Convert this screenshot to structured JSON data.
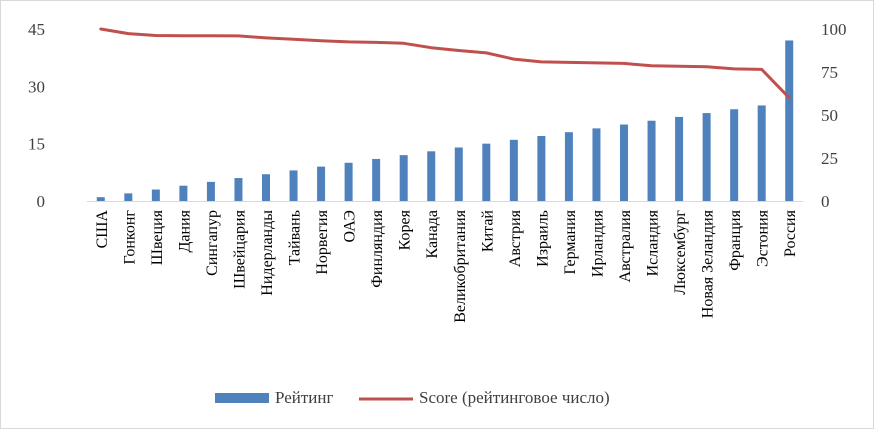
{
  "chart_data": {
    "type": "bar+line",
    "title": "",
    "categories": [
      "США",
      "Гонконг",
      "Швеция",
      "Дания",
      "Сингапур",
      "Швейцария",
      "Нидерланды",
      "Тайвань",
      "Норвегия",
      "ОАЭ",
      "Финляндия",
      "Корея",
      "Канада",
      "Великобритания",
      "Китай",
      "Австрия",
      "Израиль",
      "Германия",
      "Ирландия",
      "Австралия",
      "Исландия",
      "Люксембург",
      "Новая Зеландия",
      "Франция",
      "Эстония",
      "Россия"
    ],
    "series": [
      {
        "name": "Рейтинг",
        "type": "bar",
        "axis": "left",
        "color": "#4f81bd",
        "values": [
          1,
          2,
          3,
          4,
          5,
          6,
          7,
          8,
          9,
          10,
          11,
          12,
          13,
          14,
          15,
          16,
          17,
          18,
          19,
          20,
          21,
          22,
          23,
          24,
          25,
          42
        ]
      },
      {
        "name": "Score (рейтинговое число)",
        "type": "line",
        "axis": "right",
        "color": "#c0504d",
        "values": [
          100,
          97.3,
          96.2,
          96.1,
          96.1,
          96.0,
          94.8,
          94.0,
          93.2,
          92.5,
          92.2,
          91.7,
          89.1,
          87.5,
          86.1,
          82.5,
          80.9,
          80.6,
          80.3,
          80.0,
          78.6,
          78.4,
          78.0,
          76.8,
          76.5,
          60.0
        ]
      }
    ],
    "y_left": {
      "lim": [
        0,
        45
      ],
      "ticks": [
        0,
        15,
        30,
        45
      ]
    },
    "y_right": {
      "lim": [
        0,
        100
      ],
      "ticks": [
        0,
        25,
        50,
        75,
        100
      ]
    },
    "grid": false,
    "legend": "bottom"
  }
}
